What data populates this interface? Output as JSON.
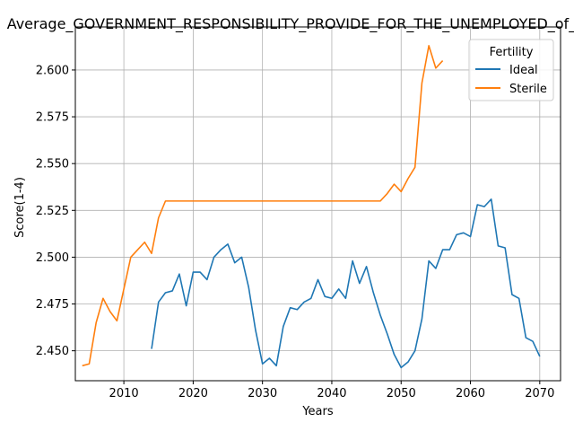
{
  "chart_data": {
    "type": "line",
    "title": "Average_GOVERNMENT_RESPONSIBILITY_PROVIDE_FOR_THE_UNEMPLOYED_of_Fertility",
    "xlabel": "Years",
    "ylabel": "Score(1-4)",
    "xlim": [
      2003,
      2073
    ],
    "ylim": [
      2.434,
      2.623
    ],
    "xticks": [
      2010,
      2020,
      2030,
      2040,
      2050,
      2060,
      2070
    ],
    "yticks": [
      2.45,
      2.475,
      2.5,
      2.525,
      2.55,
      2.575,
      2.6
    ],
    "ytick_labels": [
      "2.450",
      "2.475",
      "2.500",
      "2.525",
      "2.550",
      "2.575",
      "2.600"
    ],
    "grid": true,
    "legend": {
      "title": "Fertility",
      "placement": "top-right",
      "entries": [
        "Ideal",
        "Sterile"
      ]
    },
    "series": [
      {
        "name": "Ideal",
        "color": "#1f77b4",
        "x": [
          2014,
          2015,
          2016,
          2017,
          2018,
          2019,
          2020,
          2021,
          2022,
          2023,
          2024,
          2025,
          2026,
          2027,
          2028,
          2029,
          2030,
          2031,
          2032,
          2033,
          2034,
          2035,
          2036,
          2037,
          2038,
          2039,
          2040,
          2041,
          2042,
          2043,
          2044,
          2045,
          2046,
          2047,
          2048,
          2049,
          2050,
          2051,
          2052,
          2053,
          2054,
          2055,
          2056,
          2057,
          2058,
          2059,
          2060,
          2061,
          2062,
          2063,
          2064,
          2065,
          2066,
          2067,
          2068,
          2069,
          2070
        ],
        "y": [
          2.451,
          2.476,
          2.481,
          2.482,
          2.491,
          2.474,
          2.492,
          2.492,
          2.488,
          2.5,
          2.504,
          2.507,
          2.497,
          2.5,
          2.484,
          2.461,
          2.443,
          2.446,
          2.442,
          2.463,
          2.473,
          2.472,
          2.476,
          2.478,
          2.488,
          2.479,
          2.478,
          2.483,
          2.478,
          2.498,
          2.486,
          2.495,
          2.481,
          2.469,
          2.459,
          2.448,
          2.441,
          2.444,
          2.45,
          2.467,
          2.498,
          2.494,
          2.504,
          2.504,
          2.512,
          2.513,
          2.511,
          2.528,
          2.527,
          2.531,
          2.506,
          2.505,
          2.48,
          2.478,
          2.457,
          2.455,
          2.447
        ]
      },
      {
        "name": "Sterile",
        "color": "#ff7f0e",
        "x": [
          2004,
          2005,
          2006,
          2007,
          2008,
          2009,
          2010,
          2011,
          2012,
          2013,
          2014,
          2015,
          2016,
          2017,
          2018,
          2019,
          2020,
          2021,
          2022,
          2023,
          2024,
          2025,
          2026,
          2027,
          2028,
          2029,
          2030,
          2031,
          2032,
          2033,
          2034,
          2035,
          2036,
          2037,
          2038,
          2039,
          2040,
          2041,
          2042,
          2043,
          2044,
          2045,
          2046,
          2047,
          2048,
          2049,
          2050,
          2051,
          2052,
          2053,
          2054,
          2055,
          2056
        ],
        "y": [
          2.442,
          2.443,
          2.465,
          2.478,
          2.471,
          2.466,
          2.483,
          2.5,
          2.504,
          2.508,
          2.502,
          2.521,
          2.53,
          2.53,
          2.53,
          2.53,
          2.53,
          2.53,
          2.53,
          2.53,
          2.53,
          2.53,
          2.53,
          2.53,
          2.53,
          2.53,
          2.53,
          2.53,
          2.53,
          2.53,
          2.53,
          2.53,
          2.53,
          2.53,
          2.53,
          2.53,
          2.53,
          2.53,
          2.53,
          2.53,
          2.53,
          2.53,
          2.53,
          2.53,
          2.534,
          2.539,
          2.535,
          2.542,
          2.548,
          2.593,
          2.613,
          2.601,
          2.605
        ]
      }
    ]
  }
}
